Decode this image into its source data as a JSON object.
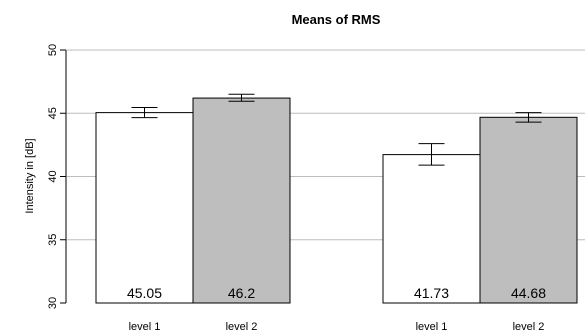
{
  "chart_data": {
    "type": "bar",
    "title": "Means of RMS",
    "xlabel": "",
    "ylabel": "Intensity in [dB]",
    "ylim": [
      30,
      50
    ],
    "yticks": [
      30,
      35,
      40,
      45,
      50
    ],
    "grid": true,
    "groups": [
      {
        "bars": [
          {
            "label": "level 1",
            "value": 45.05,
            "value_label": "45.05",
            "err_low": 44.65,
            "err_high": 45.45,
            "color": "#ffffff"
          },
          {
            "label": "level 2",
            "value": 46.2,
            "value_label": "46.2",
            "err_low": 45.95,
            "err_high": 46.5,
            "color": "#bebebe"
          }
        ]
      },
      {
        "bars": [
          {
            "label": "level 1",
            "value": 41.73,
            "value_label": "41.73",
            "err_low": 40.9,
            "err_high": 42.6,
            "color": "#ffffff"
          },
          {
            "label": "level 2",
            "value": 44.68,
            "value_label": "44.68",
            "err_low": 44.3,
            "err_high": 45.05,
            "color": "#bebebe"
          }
        ]
      }
    ]
  }
}
